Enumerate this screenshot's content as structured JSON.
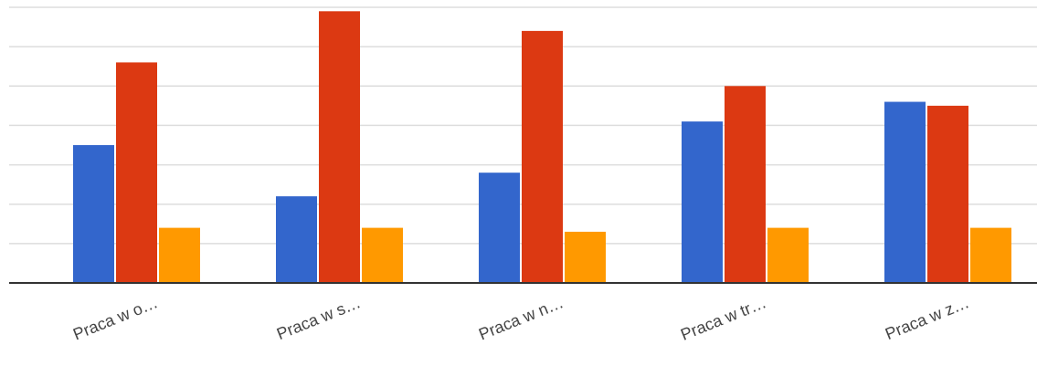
{
  "chart_data": {
    "type": "bar",
    "categories": [
      "Praca w o…",
      "Praca w s…",
      "Praca w n…",
      "Praca w tr…",
      "Praca w z…"
    ],
    "series": [
      {
        "values": [
          3.5,
          2.2,
          2.8,
          4.1,
          4.6
        ]
      },
      {
        "values": [
          5.6,
          6.9,
          6.4,
          5.0,
          4.5
        ]
      },
      {
        "values": [
          1.4,
          1.4,
          1.3,
          1.4,
          1.4
        ]
      }
    ],
    "colors": [
      "#3366cc",
      "#dc3912",
      "#ff9900"
    ],
    "ylim": [
      0,
      7
    ],
    "grid": true,
    "legend": "none"
  }
}
